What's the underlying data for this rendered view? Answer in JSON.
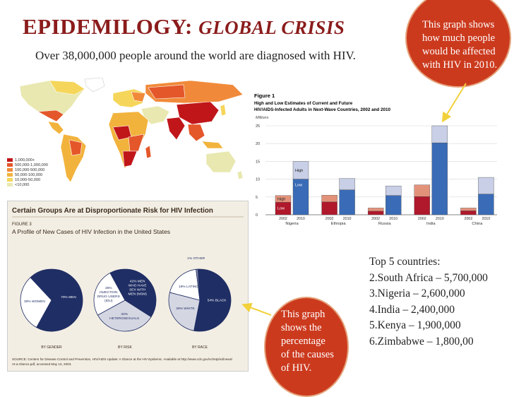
{
  "slide": {
    "title_main": "EPIDEMILOGY:",
    "title_emph": "GLOBAL CRISIS",
    "subtitle": "Over 38,000,000 people around the world are diagnosed with HIV."
  },
  "callouts": {
    "top_right": [
      "This graph shows",
      "how much people",
      "would be affected",
      "with HIV in 2010."
    ],
    "bottom": [
      "This graph",
      "shows the",
      "percentage",
      "of the causes",
      "of HIV."
    ]
  },
  "map_legend": [
    "1,000,000+",
    "500,000-1,000,000",
    "100,000-500,000",
    "50,000-100,000",
    "10,000-50,000",
    "<10,000"
  ],
  "map_colors": [
    "#c0161a",
    "#e4572a",
    "#f08a3a",
    "#f2b33d",
    "#f5d65a",
    "#e8e8b0"
  ],
  "top5": {
    "heading": "Top 5 countries:",
    "items": [
      "2.South Africa – 5,700,000",
      "3.Nigeria – 2,600,000",
      "4.India – 2,400,000",
      "5.Kenya – 1,900,000",
      "6.Zimbabwe – 1,800,00"
    ]
  },
  "chart_data": [
    {
      "type": "bar",
      "label": "Figure 1",
      "title": "High and Low Estimates of Current and Future HIV/AIDS-Infected Adults in Next-Wave Countries, 2002 and 2010",
      "ylabel": "Millions",
      "ylim": [
        0,
        25
      ],
      "yticks": [
        0,
        5,
        10,
        15,
        20,
        25
      ],
      "categories": [
        "Nigeria",
        "Ethiopia",
        "Russia",
        "India",
        "China"
      ],
      "years": [
        "2002",
        "2010"
      ],
      "low": {
        "2002": [
          3.5,
          3.6,
          1.0,
          5.1,
          1.1
        ],
        "2010": [
          10.0,
          7.0,
          5.4,
          20.2,
          5.8
        ]
      },
      "high": {
        "2002": [
          5.4,
          5.5,
          1.9,
          8.4,
          1.9
        ],
        "2010": [
          15.0,
          10.2,
          8.1,
          25.0,
          10.5
        ]
      },
      "bar_labels": {
        "high": "High",
        "low": "Low"
      },
      "colors": {
        "low_2002": "#b0182c",
        "high_2002": "#e3927a",
        "low_2010": "#3a6bb6",
        "high_2010": "#c8cfe6"
      }
    },
    {
      "type": "pie",
      "headline": "Certain Groups Are at Disproportionate Risk for HIV Infection",
      "figure_label": "FIGURE 3",
      "title": "A Profile of New Cases of HIV Infection in the United States",
      "pies": [
        {
          "caption": "BY GENDER",
          "slices": [
            {
              "label": "70% MEN",
              "value": 70,
              "color": "#1f2e64"
            },
            {
              "label": "30% WOMEN",
              "value": 30,
              "color": "#ffffff"
            }
          ]
        },
        {
          "caption": "BY RISK",
          "slices": [
            {
              "label": "42% MEN WHO HAVE SEX WITH MEN (MSM)",
              "value": 42,
              "color": "#1f2e64"
            },
            {
              "label": "33% HETEROSEXUALS",
              "value": 33,
              "color": "#d4d6e2"
            },
            {
              "label": "25% INJECTION DRUG USERS (IDU)",
              "value": 25,
              "color": "#ffffff"
            }
          ]
        },
        {
          "caption": "BY RACE",
          "slices": [
            {
              "label": "54% BLACK",
              "value": 54,
              "color": "#1f2e64"
            },
            {
              "label": "26% WHITE",
              "value": 26,
              "color": "#d4d6e2"
            },
            {
              "label": "19% LATINO",
              "value": 19,
              "color": "#ffffff"
            },
            {
              "label": "1% OTHER",
              "value": 1,
              "color": "#8a8fb0"
            }
          ]
        }
      ],
      "source": "SOURCE: Centers for Disease Control and Prevention, HIV/AIDS Update: A Glance at the HIV Epidemic. Available at http://www.cdc.gov/nchstp/od/news/At-a-Glance.pdf, accessed May 13, 2003."
    }
  ]
}
